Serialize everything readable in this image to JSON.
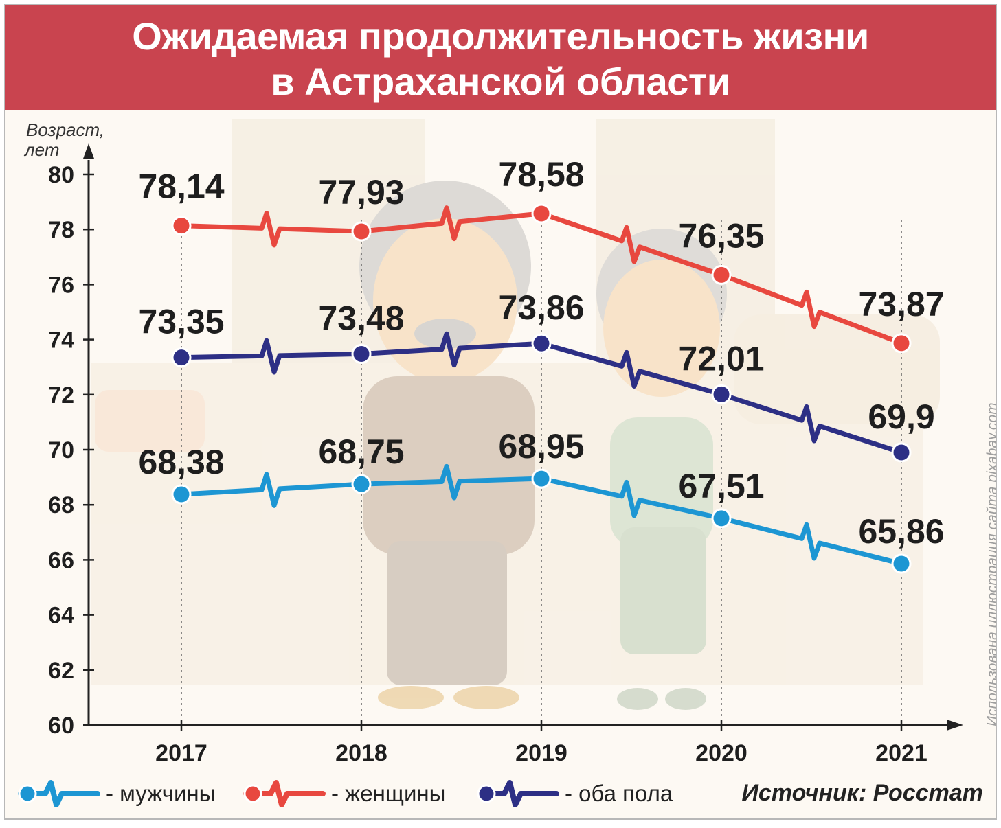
{
  "header": {
    "title_line1": "Ожидаемая продолжительность жизни",
    "title_line2": "в Астраханской области"
  },
  "chart_data": {
    "type": "line",
    "title": "Ожидаемая продолжительность жизни в Астраханской области",
    "ylabel": "Возраст, лет",
    "xlabel": "",
    "x": [
      "2017",
      "2018",
      "2019",
      "2020",
      "2021"
    ],
    "ylim": [
      60,
      80
    ],
    "yticks": [
      "60",
      "62",
      "64",
      "66",
      "68",
      "70",
      "72",
      "74",
      "76",
      "78",
      "80"
    ],
    "grid": "vertical dotted lines at each year",
    "series": [
      {
        "name": "женщины",
        "color": "#e8483f",
        "values": [
          78.14,
          77.93,
          78.58,
          76.35,
          73.87
        ],
        "labels": [
          "78,14",
          "77,93",
          "78,58",
          "76,35",
          "73,87"
        ]
      },
      {
        "name": "оба пола",
        "color": "#2d2f85",
        "values": [
          73.35,
          73.48,
          73.86,
          72.01,
          69.9
        ],
        "labels": [
          "73,35",
          "73,48",
          "73,86",
          "72,01",
          "69,9"
        ]
      },
      {
        "name": "мужчины",
        "color": "#1d96d3",
        "values": [
          68.38,
          68.75,
          68.95,
          67.51,
          65.86
        ],
        "labels": [
          "68,38",
          "68,75",
          "68,95",
          "67,51",
          "65,86"
        ]
      }
    ],
    "legend_position": "bottom"
  },
  "legend": {
    "men": "- мужчины",
    "women": "- женщины",
    "both": "- оба пола"
  },
  "source": "Источник: Росстат",
  "credit": "Использована иллюстрация сайта pixabay.com"
}
